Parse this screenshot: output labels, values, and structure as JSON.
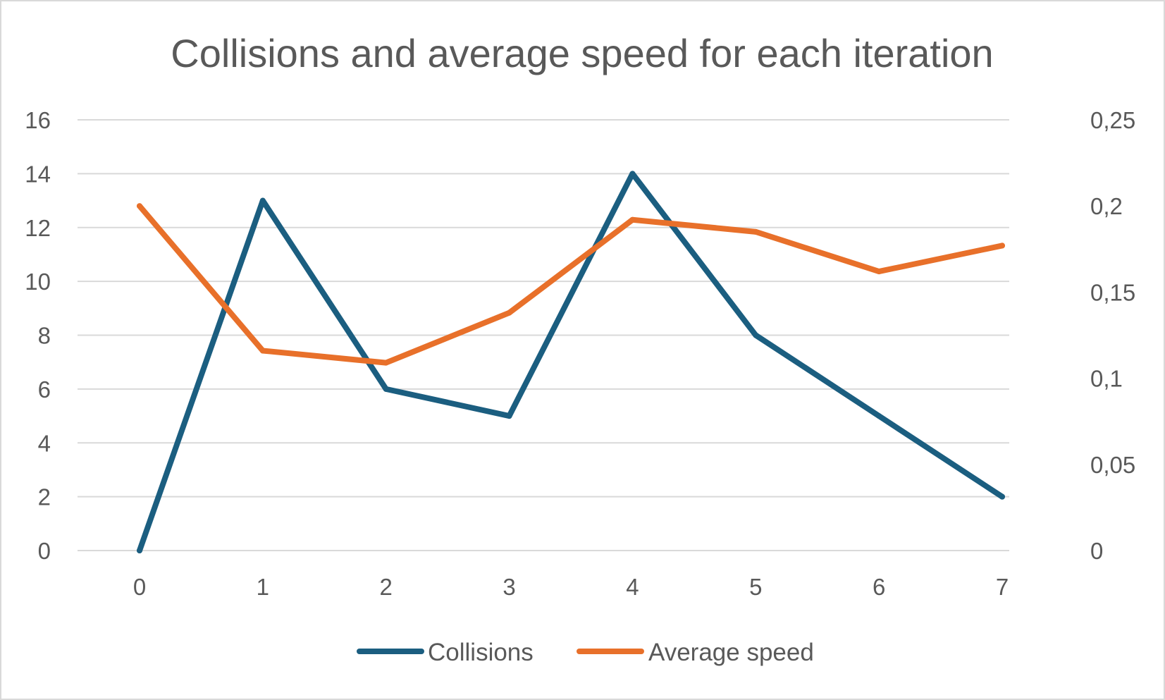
{
  "chart_data": {
    "type": "line",
    "title": "Collisions and average speed for each iteration",
    "xlabel": "",
    "ylabel": "",
    "y2label": "",
    "categories": [
      "0",
      "1",
      "2",
      "3",
      "4",
      "5",
      "6",
      "7"
    ],
    "y_ticks": [
      "0",
      "2",
      "4",
      "6",
      "8",
      "10",
      "12",
      "14",
      "16"
    ],
    "y2_ticks": [
      "0",
      "0,05",
      "0,1",
      "0,15",
      "0,2",
      "0,25"
    ],
    "ylim": [
      0,
      16
    ],
    "y2lim": [
      0,
      0.25
    ],
    "grid": true,
    "legend_position": "bottom",
    "series": [
      {
        "name": "Collisions",
        "axis": "left",
        "color": "#1b5e80",
        "values": [
          0,
          13,
          6,
          5,
          14,
          8,
          5,
          2
        ]
      },
      {
        "name": "Average speed",
        "axis": "right",
        "color": "#e8702a",
        "values": [
          0.2,
          0.116,
          0.109,
          0.138,
          0.192,
          0.185,
          0.162,
          0.177
        ]
      }
    ]
  }
}
